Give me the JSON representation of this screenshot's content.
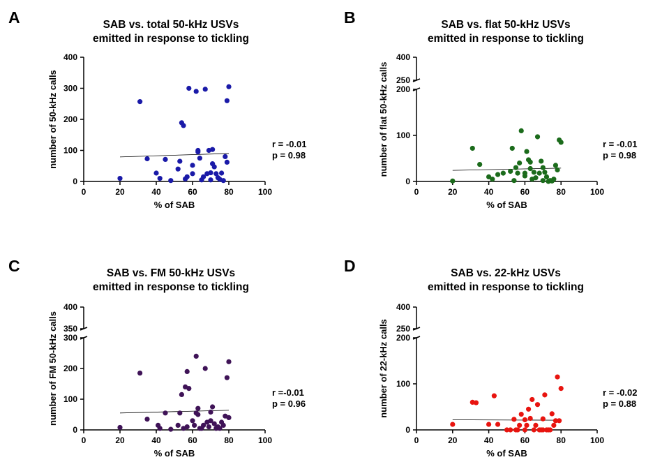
{
  "chart_data": [
    {
      "panel": "A",
      "type": "scatter",
      "title": [
        "SAB vs. total 50-kHz USVs",
        "emitted in response to tickling"
      ],
      "xlabel": "% of SAB",
      "ylabel": "number of 50-kHz calls",
      "xlim": [
        0,
        100
      ],
      "xticks": [
        0,
        20,
        40,
        60,
        80,
        100
      ],
      "ylim": [
        0,
        400
      ],
      "yticks": [
        0,
        100,
        200,
        300,
        400
      ],
      "color": "#1a1aa8",
      "stats": [
        "r = -0.01",
        "p = 0.98"
      ],
      "trend": [
        [
          20,
          79
        ],
        [
          80,
          90
        ]
      ],
      "points": [
        [
          20,
          10
        ],
        [
          31,
          257
        ],
        [
          35,
          73
        ],
        [
          40,
          27
        ],
        [
          42,
          10
        ],
        [
          45,
          71
        ],
        [
          48,
          3
        ],
        [
          52,
          40
        ],
        [
          53,
          65
        ],
        [
          54,
          189
        ],
        [
          55,
          180
        ],
        [
          56,
          8
        ],
        [
          57,
          15
        ],
        [
          58,
          300
        ],
        [
          60,
          25
        ],
        [
          60,
          52
        ],
        [
          62,
          290
        ],
        [
          63,
          100
        ],
        [
          63,
          95
        ],
        [
          64,
          75
        ],
        [
          65,
          5
        ],
        [
          66,
          15
        ],
        [
          67,
          297
        ],
        [
          68,
          25
        ],
        [
          69,
          100
        ],
        [
          70,
          28
        ],
        [
          70,
          5
        ],
        [
          71,
          57
        ],
        [
          71,
          103
        ],
        [
          72,
          47
        ],
        [
          73,
          25
        ],
        [
          74,
          12
        ],
        [
          75,
          7
        ],
        [
          76,
          27
        ],
        [
          77,
          3
        ],
        [
          78,
          80
        ],
        [
          79,
          62
        ],
        [
          79,
          260
        ],
        [
          80,
          305
        ]
      ]
    },
    {
      "panel": "B",
      "type": "scatter",
      "title": [
        "SAB vs. flat 50-kHz USVs",
        "emitted in response to tickling"
      ],
      "xlabel": "% of SAB",
      "ylabel": "number of flat 50-kHz calls",
      "xlim": [
        0,
        100
      ],
      "xticks": [
        0,
        20,
        40,
        60,
        80,
        100
      ],
      "ylim": [
        0,
        400
      ],
      "yticks": [
        0,
        100,
        200,
        250,
        400
      ],
      "color": "#1b6b1b",
      "stats": [
        "r = -0.01",
        "p = 0.98"
      ],
      "trend": [
        [
          20,
          24
        ],
        [
          80,
          29
        ]
      ],
      "points": [
        [
          20,
          1
        ],
        [
          31,
          72
        ],
        [
          35,
          37
        ],
        [
          40,
          10
        ],
        [
          42,
          5
        ],
        [
          45,
          15
        ],
        [
          48,
          18
        ],
        [
          52,
          22
        ],
        [
          53,
          72
        ],
        [
          54,
          2
        ],
        [
          55,
          30
        ],
        [
          56,
          18
        ],
        [
          57,
          40
        ],
        [
          58,
          110
        ],
        [
          60,
          12
        ],
        [
          60,
          18
        ],
        [
          61,
          65
        ],
        [
          62,
          47
        ],
        [
          63,
          28
        ],
        [
          63,
          42
        ],
        [
          64,
          5
        ],
        [
          65,
          20
        ],
        [
          66,
          8
        ],
        [
          67,
          97
        ],
        [
          68,
          18
        ],
        [
          69,
          44
        ],
        [
          70,
          2
        ],
        [
          70,
          30
        ],
        [
          71,
          20
        ],
        [
          72,
          10
        ],
        [
          73,
          0
        ],
        [
          74,
          2
        ],
        [
          75,
          1
        ],
        [
          76,
          5
        ],
        [
          77,
          35
        ],
        [
          78,
          25
        ],
        [
          79,
          90
        ],
        [
          80,
          85
        ]
      ]
    },
    {
      "panel": "C",
      "type": "scatter",
      "title": [
        "SAB vs. FM 50-kHz USVs",
        "emitted in response to tickling"
      ],
      "xlabel": "% of SAB",
      "ylabel": "number of FM 50-kHz calls",
      "xlim": [
        0,
        100
      ],
      "xticks": [
        0,
        20,
        40,
        60,
        80,
        100
      ],
      "ylim": [
        0,
        400
      ],
      "yticks": [
        0,
        100,
        200,
        300,
        350,
        400
      ],
      "color": "#3f1357",
      "stats": [
        "r =-0.01",
        "p = 0.96"
      ],
      "trend": [
        [
          20,
          55
        ],
        [
          80,
          64
        ]
      ],
      "points": [
        [
          20,
          8
        ],
        [
          31,
          185
        ],
        [
          35,
          35
        ],
        [
          41,
          15
        ],
        [
          42,
          5
        ],
        [
          45,
          55
        ],
        [
          48,
          2
        ],
        [
          52,
          15
        ],
        [
          53,
          55
        ],
        [
          54,
          115
        ],
        [
          55,
          5
        ],
        [
          56,
          140
        ],
        [
          57,
          10
        ],
        [
          57,
          190
        ],
        [
          58,
          135
        ],
        [
          60,
          30
        ],
        [
          61,
          15
        ],
        [
          62,
          240
        ],
        [
          62,
          55
        ],
        [
          63,
          70
        ],
        [
          63,
          50
        ],
        [
          64,
          5
        ],
        [
          65,
          5
        ],
        [
          66,
          15
        ],
        [
          67,
          200
        ],
        [
          68,
          25
        ],
        [
          69,
          10
        ],
        [
          70,
          58
        ],
        [
          70,
          30
        ],
        [
          71,
          75
        ],
        [
          72,
          20
        ],
        [
          73,
          5
        ],
        [
          74,
          10
        ],
        [
          75,
          5
        ],
        [
          76,
          25
        ],
        [
          77,
          15
        ],
        [
          78,
          45
        ],
        [
          79,
          170
        ],
        [
          80,
          40
        ],
        [
          80,
          222
        ]
      ]
    },
    {
      "panel": "D",
      "type": "scatter",
      "title": [
        "SAB vs. 22-kHz USVs",
        "emitted in response to tickling"
      ],
      "xlabel": "% of SAB",
      "ylabel": "number of 22-kHz calls",
      "xlim": [
        0,
        100
      ],
      "xticks": [
        0,
        20,
        40,
        60,
        80,
        100
      ],
      "ylim": [
        0,
        400
      ],
      "yticks": [
        0,
        100,
        200,
        250,
        400
      ],
      "color": "#e8140f",
      "stats": [
        "r = -0.02",
        "p = 0.88"
      ],
      "trend": [
        [
          20,
          22
        ],
        [
          80,
          21
        ]
      ],
      "points": [
        [
          20,
          12
        ],
        [
          31,
          60
        ],
        [
          33,
          59
        ],
        [
          40,
          12
        ],
        [
          43,
          74
        ],
        [
          45,
          12
        ],
        [
          50,
          0
        ],
        [
          52,
          0
        ],
        [
          54,
          23
        ],
        [
          55,
          0
        ],
        [
          56,
          0
        ],
        [
          57,
          10
        ],
        [
          58,
          34
        ],
        [
          60,
          22
        ],
        [
          60,
          0
        ],
        [
          61,
          10
        ],
        [
          62,
          45
        ],
        [
          63,
          25
        ],
        [
          64,
          66
        ],
        [
          65,
          0
        ],
        [
          66,
          10
        ],
        [
          67,
          55
        ],
        [
          68,
          0
        ],
        [
          69,
          0
        ],
        [
          70,
          0
        ],
        [
          70,
          24
        ],
        [
          71,
          76
        ],
        [
          72,
          0
        ],
        [
          73,
          0
        ],
        [
          74,
          0
        ],
        [
          75,
          35
        ],
        [
          76,
          10
        ],
        [
          77,
          20
        ],
        [
          78,
          115
        ],
        [
          79,
          20
        ],
        [
          80,
          90
        ]
      ]
    }
  ]
}
